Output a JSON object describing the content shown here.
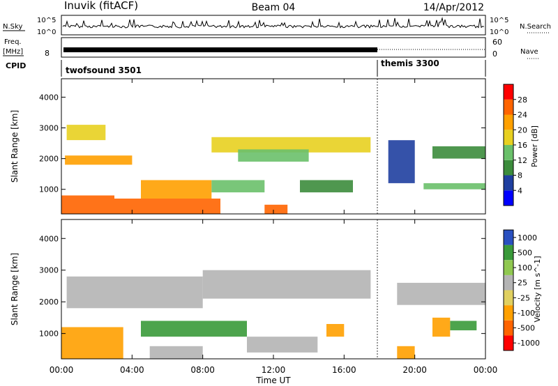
{
  "header": {
    "station": "Inuvik (fitACF)",
    "beam": "Beam 04",
    "date": "14/Apr/2012"
  },
  "strips": {
    "nsky_label": "N.Sky",
    "nsky_ticks": [
      "10^5",
      "10^0"
    ],
    "nsearch_label": "N.Search",
    "nsearch_ticks": [
      "10^5",
      "10^0"
    ],
    "freq_label_line1": "Freq.",
    "freq_label_line2": "[MHz]",
    "freq_ticks": [
      "8"
    ],
    "nave_label": "Nave",
    "nave_ticks": [
      "60",
      "0"
    ],
    "cpid_label": "CPID",
    "cpid_segments": [
      {
        "name": "twofsound 3501",
        "start_hour": 0,
        "end_hour": 18
      },
      {
        "name": "themis 3300",
        "start_hour": 18,
        "end_hour": 24
      }
    ]
  },
  "colors": {
    "power": [
      "#0000ff",
      "#1f3fa0",
      "#3c8c3c",
      "#6ac06a",
      "#e8d020",
      "#ffa000",
      "#ff6400",
      "#ff0000"
    ],
    "velocity": [
      "#ff0000",
      "#ff6400",
      "#ffa000",
      "#e0d060",
      "#b4b4b4",
      "#90c850",
      "#3a9a3a",
      "#2a50c0"
    ]
  },
  "chart_data": [
    {
      "type": "heatmap",
      "panel": "power",
      "ylabel": "Slant Range [km]",
      "xlabel": "",
      "x_ticks": [
        "00:00",
        "04:00",
        "08:00",
        "12:00",
        "16:00",
        "20:00",
        "00:00"
      ],
      "xlim_hours": [
        0,
        24
      ],
      "y_ticks": [
        "1000",
        "2000",
        "3000",
        "4000"
      ],
      "ylim": [
        200,
        4600
      ],
      "colorbar_label": "Power [dB]",
      "colorbar_ticks": [
        "4",
        "8",
        "12",
        "16",
        "20",
        "24",
        "28"
      ],
      "bands": [
        {
          "start_hour": 0.0,
          "end_hour": 3.0,
          "range_low": 200,
          "range_high": 800,
          "value": 28
        },
        {
          "start_hour": 3.0,
          "end_hour": 9.0,
          "range_low": 200,
          "range_high": 700,
          "value": 28
        },
        {
          "start_hour": 4.5,
          "end_hour": 8.5,
          "range_low": 700,
          "range_high": 1300,
          "value": 24
        },
        {
          "start_hour": 0.2,
          "end_hour": 4.0,
          "range_low": 1800,
          "range_high": 2100,
          "value": 24
        },
        {
          "start_hour": 0.3,
          "end_hour": 2.5,
          "range_low": 2600,
          "range_high": 3100,
          "value": 20
        },
        {
          "start_hour": 8.5,
          "end_hour": 11.5,
          "range_low": 900,
          "range_high": 1300,
          "value": 16
        },
        {
          "start_hour": 8.5,
          "end_hour": 17.5,
          "range_low": 2200,
          "range_high": 2700,
          "value": 20
        },
        {
          "start_hour": 10.0,
          "end_hour": 14.0,
          "range_low": 1900,
          "range_high": 2300,
          "value": 16
        },
        {
          "start_hour": 11.5,
          "end_hour": 12.8,
          "range_low": 200,
          "range_high": 500,
          "value": 28
        },
        {
          "start_hour": 13.5,
          "end_hour": 16.5,
          "range_low": 900,
          "range_high": 1300,
          "value": 12
        },
        {
          "start_hour": 18.5,
          "end_hour": 20.0,
          "range_low": 1200,
          "range_high": 2600,
          "value": 8
        },
        {
          "start_hour": 21.0,
          "end_hour": 24.0,
          "range_low": 2000,
          "range_high": 2400,
          "value": 12
        },
        {
          "start_hour": 20.5,
          "end_hour": 24.0,
          "range_low": 1000,
          "range_high": 1200,
          "value": 16
        }
      ]
    },
    {
      "type": "heatmap",
      "panel": "velocity",
      "ylabel": "Slant Range [km]",
      "xlabel": "Time UT",
      "x_ticks": [
        "00:00",
        "04:00",
        "08:00",
        "12:00",
        "16:00",
        "20:00",
        "00:00"
      ],
      "xlim_hours": [
        0,
        24
      ],
      "y_ticks": [
        "1000",
        "2000",
        "3000",
        "4000"
      ],
      "ylim": [
        200,
        4600
      ],
      "colorbar_label": "Velocity [m s^-1]",
      "colorbar_ticks": [
        "1000",
        "500",
        "100",
        "25",
        "-25",
        "-100",
        "-500",
        "-1000"
      ],
      "bands": [
        {
          "start_hour": 0.0,
          "end_hour": 3.5,
          "range_low": 200,
          "range_high": 1200,
          "value": -300
        },
        {
          "start_hour": 4.5,
          "end_hour": 10.5,
          "range_low": 900,
          "range_high": 1400,
          "value": 300
        },
        {
          "start_hour": 5.0,
          "end_hour": 8.0,
          "range_low": 200,
          "range_high": 600,
          "value": 0
        },
        {
          "start_hour": 0.3,
          "end_hour": 8.0,
          "range_low": 1800,
          "range_high": 2800,
          "value": 0
        },
        {
          "start_hour": 8.0,
          "end_hour": 17.5,
          "range_low": 2100,
          "range_high": 3000,
          "value": 0
        },
        {
          "start_hour": 10.5,
          "end_hour": 14.5,
          "range_low": 400,
          "range_high": 900,
          "value": 0
        },
        {
          "start_hour": 15.0,
          "end_hour": 16.0,
          "range_low": 900,
          "range_high": 1300,
          "value": -200
        },
        {
          "start_hour": 19.0,
          "end_hour": 24.0,
          "range_low": 1900,
          "range_high": 2600,
          "value": 0
        },
        {
          "start_hour": 22.0,
          "end_hour": 23.5,
          "range_low": 1100,
          "range_high": 1400,
          "value": 300
        },
        {
          "start_hour": 21.0,
          "end_hour": 22.0,
          "range_low": 900,
          "range_high": 1500,
          "value": -300
        },
        {
          "start_hour": 19.0,
          "end_hour": 20.0,
          "range_low": 200,
          "range_high": 600,
          "value": -200
        }
      ]
    }
  ]
}
